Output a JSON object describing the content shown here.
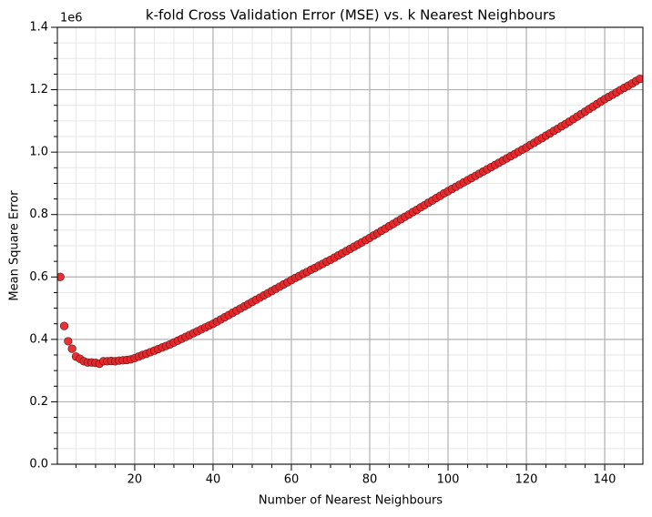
{
  "chart_data": {
    "type": "scatter",
    "title": "k-fold Cross Validation Error (MSE) vs. k Nearest Neighbours",
    "x_label": "Number of Nearest Neighbours",
    "y_label": "Mean Square Error",
    "y_offset_label": "1e6",
    "color": "#e8262a",
    "edge_color": "#5a1010",
    "grid": true,
    "minor_grid": true,
    "xlim": [
      0.25,
      149.75
    ],
    "ylim": [
      0,
      1400000
    ],
    "xticks": [
      20,
      40,
      60,
      80,
      100,
      120,
      140
    ],
    "yticks": [
      {
        "value": 0,
        "label": "0.0"
      },
      {
        "value": 200000,
        "label": "0.2"
      },
      {
        "value": 400000,
        "label": "0.4"
      },
      {
        "value": 600000,
        "label": "0.6"
      },
      {
        "value": 800000,
        "label": "0.8"
      },
      {
        "value": 1000000,
        "label": "1.0"
      },
      {
        "value": 1200000,
        "label": "1.2"
      },
      {
        "value": 1400000,
        "label": "1.4"
      }
    ],
    "xminorticks": [
      5,
      10,
      15,
      25,
      30,
      35,
      45,
      50,
      55,
      65,
      70,
      75,
      85,
      90,
      95,
      105,
      110,
      115,
      125,
      130,
      135,
      145
    ],
    "yminorticks": [
      50000,
      100000,
      150000,
      250000,
      300000,
      350000,
      450000,
      500000,
      550000,
      650000,
      700000,
      750000,
      850000,
      900000,
      950000,
      1050000,
      1100000,
      1150000,
      1250000,
      1300000,
      1350000
    ],
    "x": [
      1,
      2,
      3,
      4,
      5,
      6,
      7,
      8,
      9,
      10,
      11,
      12,
      13,
      14,
      15,
      16,
      17,
      18,
      19,
      20,
      21,
      22,
      23,
      24,
      25,
      26,
      27,
      28,
      29,
      30,
      31,
      32,
      33,
      34,
      35,
      36,
      37,
      38,
      39,
      40,
      41,
      42,
      43,
      44,
      45,
      46,
      47,
      48,
      49,
      50,
      51,
      52,
      53,
      54,
      55,
      56,
      57,
      58,
      59,
      60,
      61,
      62,
      63,
      64,
      65,
      66,
      67,
      68,
      69,
      70,
      71,
      72,
      73,
      74,
      75,
      76,
      77,
      78,
      79,
      80,
      81,
      82,
      83,
      84,
      85,
      86,
      87,
      88,
      89,
      90,
      91,
      92,
      93,
      94,
      95,
      96,
      97,
      98,
      99,
      100,
      101,
      102,
      103,
      104,
      105,
      106,
      107,
      108,
      109,
      110,
      111,
      112,
      113,
      114,
      115,
      116,
      117,
      118,
      119,
      120,
      121,
      122,
      123,
      124,
      125,
      126,
      127,
      128,
      129,
      130,
      131,
      132,
      133,
      134,
      135,
      136,
      137,
      138,
      139,
      140,
      141,
      142,
      143,
      144,
      145,
      146,
      147,
      148,
      149
    ],
    "values": [
      600000,
      443000,
      394000,
      370000,
      345000,
      338000,
      330000,
      326000,
      326000,
      325000,
      322000,
      330000,
      330000,
      331000,
      330000,
      332000,
      333000,
      334000,
      336000,
      340000,
      345000,
      350000,
      354000,
      359000,
      364000,
      369000,
      374000,
      379000,
      384000,
      390000,
      396000,
      402000,
      408000,
      414000,
      420000,
      426000,
      432000,
      438000,
      444000,
      450000,
      457000,
      464000,
      471000,
      478000,
      485000,
      492000,
      499000,
      506000,
      513000,
      520000,
      527000,
      534000,
      541000,
      548000,
      555000,
      562000,
      569000,
      576000,
      583000,
      590000,
      597000,
      603000,
      610000,
      616000,
      623000,
      629000,
      636000,
      642000,
      649000,
      655000,
      662000,
      669000,
      676000,
      683000,
      690000,
      697000,
      704000,
      711000,
      718000,
      725000,
      733000,
      740000,
      748000,
      755000,
      763000,
      770000,
      778000,
      785000,
      793000,
      800000,
      808000,
      815000,
      823000,
      830000,
      838000,
      845000,
      853000,
      860000,
      868000,
      875000,
      882000,
      889000,
      896000,
      903000,
      910000,
      917000,
      924000,
      931000,
      938000,
      945000,
      952000,
      959000,
      966000,
      973000,
      980000,
      987000,
      994000,
      1001000,
      1008000,
      1015000,
      1023000,
      1030000,
      1038000,
      1045000,
      1053000,
      1060000,
      1068000,
      1075000,
      1083000,
      1090000,
      1098000,
      1106000,
      1114000,
      1122000,
      1130000,
      1138000,
      1146000,
      1154000,
      1162000,
      1170000,
      1177000,
      1184000,
      1191000,
      1199000,
      1206000,
      1213000,
      1220000,
      1228000,
      1235000
    ]
  }
}
